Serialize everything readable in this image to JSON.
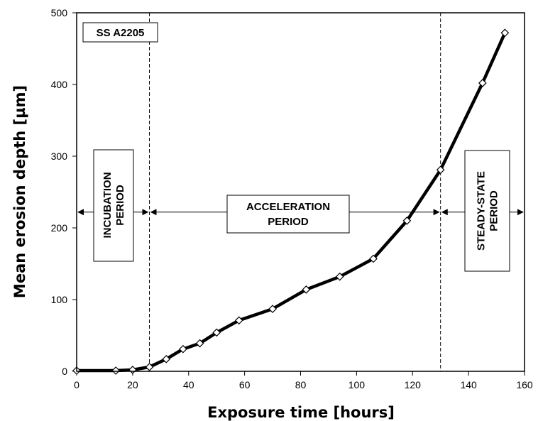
{
  "chart_data": {
    "type": "line",
    "title": "",
    "xlabel": "Exposure time [hours]",
    "ylabel": "Mean erosion depth [µm]",
    "xlim": [
      0,
      160
    ],
    "ylim": [
      0,
      500
    ],
    "x_ticks": [
      "0",
      "20",
      "40",
      "60",
      "80",
      "100",
      "120",
      "140",
      "160"
    ],
    "y_ticks": [
      "0",
      "100",
      "200",
      "300",
      "400",
      "500"
    ],
    "grid": false,
    "legend": "none",
    "series": [
      {
        "marker": "diamond",
        "color": "#000000",
        "x": [
          0,
          14,
          20,
          26,
          32,
          38,
          44,
          50,
          58,
          70,
          82,
          94,
          106,
          118,
          130,
          145,
          153
        ],
        "y": [
          1,
          1,
          2,
          6,
          17,
          31,
          39,
          54,
          71,
          87,
          114,
          132,
          157,
          210,
          281,
          402,
          472
        ]
      }
    ],
    "annotations": {
      "material_label": "SS A2205",
      "boundaries_x": [
        26,
        130
      ],
      "arrow_y": 222,
      "periods": [
        {
          "line1": "INCUBATION",
          "line2": "PERIOD",
          "orientation": "vertical"
        },
        {
          "line1": "ACCELERATION",
          "line2": "PERIOD",
          "orientation": "horizontal"
        },
        {
          "line1": "STEADY-STATE",
          "line2": "PERIOD",
          "orientation": "vertical"
        }
      ]
    }
  }
}
